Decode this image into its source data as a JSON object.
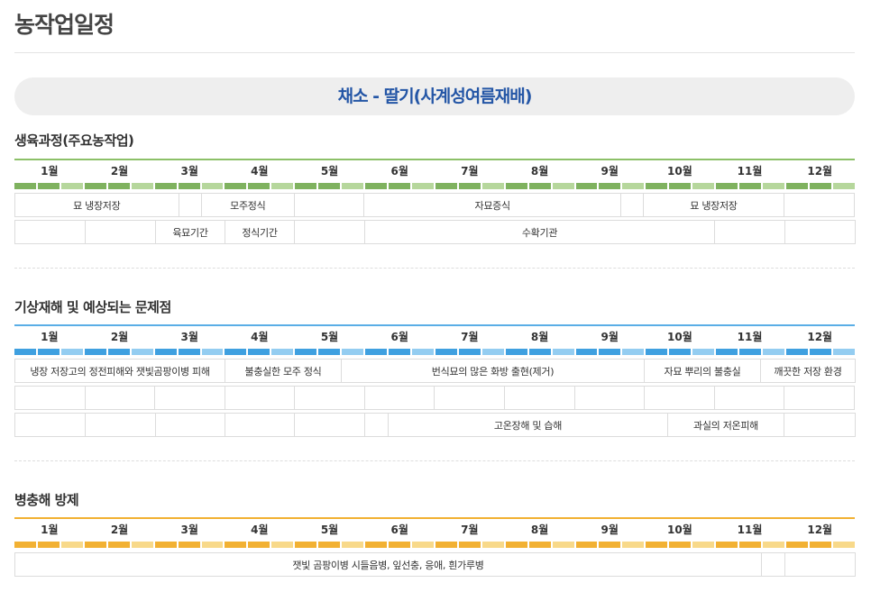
{
  "page": {
    "title": "농작업일정"
  },
  "crop": {
    "title": "채소 - 딸기(사계성여름재배)"
  },
  "months": [
    "1월",
    "2월",
    "3월",
    "4월",
    "5월",
    "6월",
    "7월",
    "8월",
    "9월",
    "10월",
    "11월",
    "12월"
  ],
  "colors": {
    "green_dark": "#7fb25f",
    "green_light": "#b6d79c",
    "blue_dark": "#3fa0e0",
    "blue_light": "#94cdf1",
    "yellow_dark": "#f2b133",
    "yellow_light": "#f8d98a"
  },
  "growth": {
    "title": "생육과정(주요농작업)",
    "row1": [
      "묘 냉장저장",
      "",
      "모주정식",
      "",
      "자묘증식",
      "",
      "묘 냉장저장",
      ""
    ],
    "row2": [
      "",
      "",
      "육묘기간",
      "정식기간",
      "",
      "수확기관",
      "",
      ""
    ]
  },
  "weather": {
    "title": "기상재해 및 예상되는 문제점",
    "row1": [
      "냉장 저장고의 정전피해와 잿빛곰팡이병 피해",
      "불충실한 모주 정식",
      "번식묘의 많은 화방 출현(제거)",
      "자묘 뿌리의 불충실",
      "깨끗한 저장 환경"
    ],
    "row3": [
      "",
      "",
      "",
      "",
      "",
      "",
      "고온장해 및 습해",
      "과실의 저온피해",
      ""
    ]
  },
  "pest": {
    "title": "병충해 방제",
    "row1": [
      "잿빛 곰팡이병 시들음병, 잎선충, 응애, 흰가루병",
      "",
      ""
    ]
  }
}
